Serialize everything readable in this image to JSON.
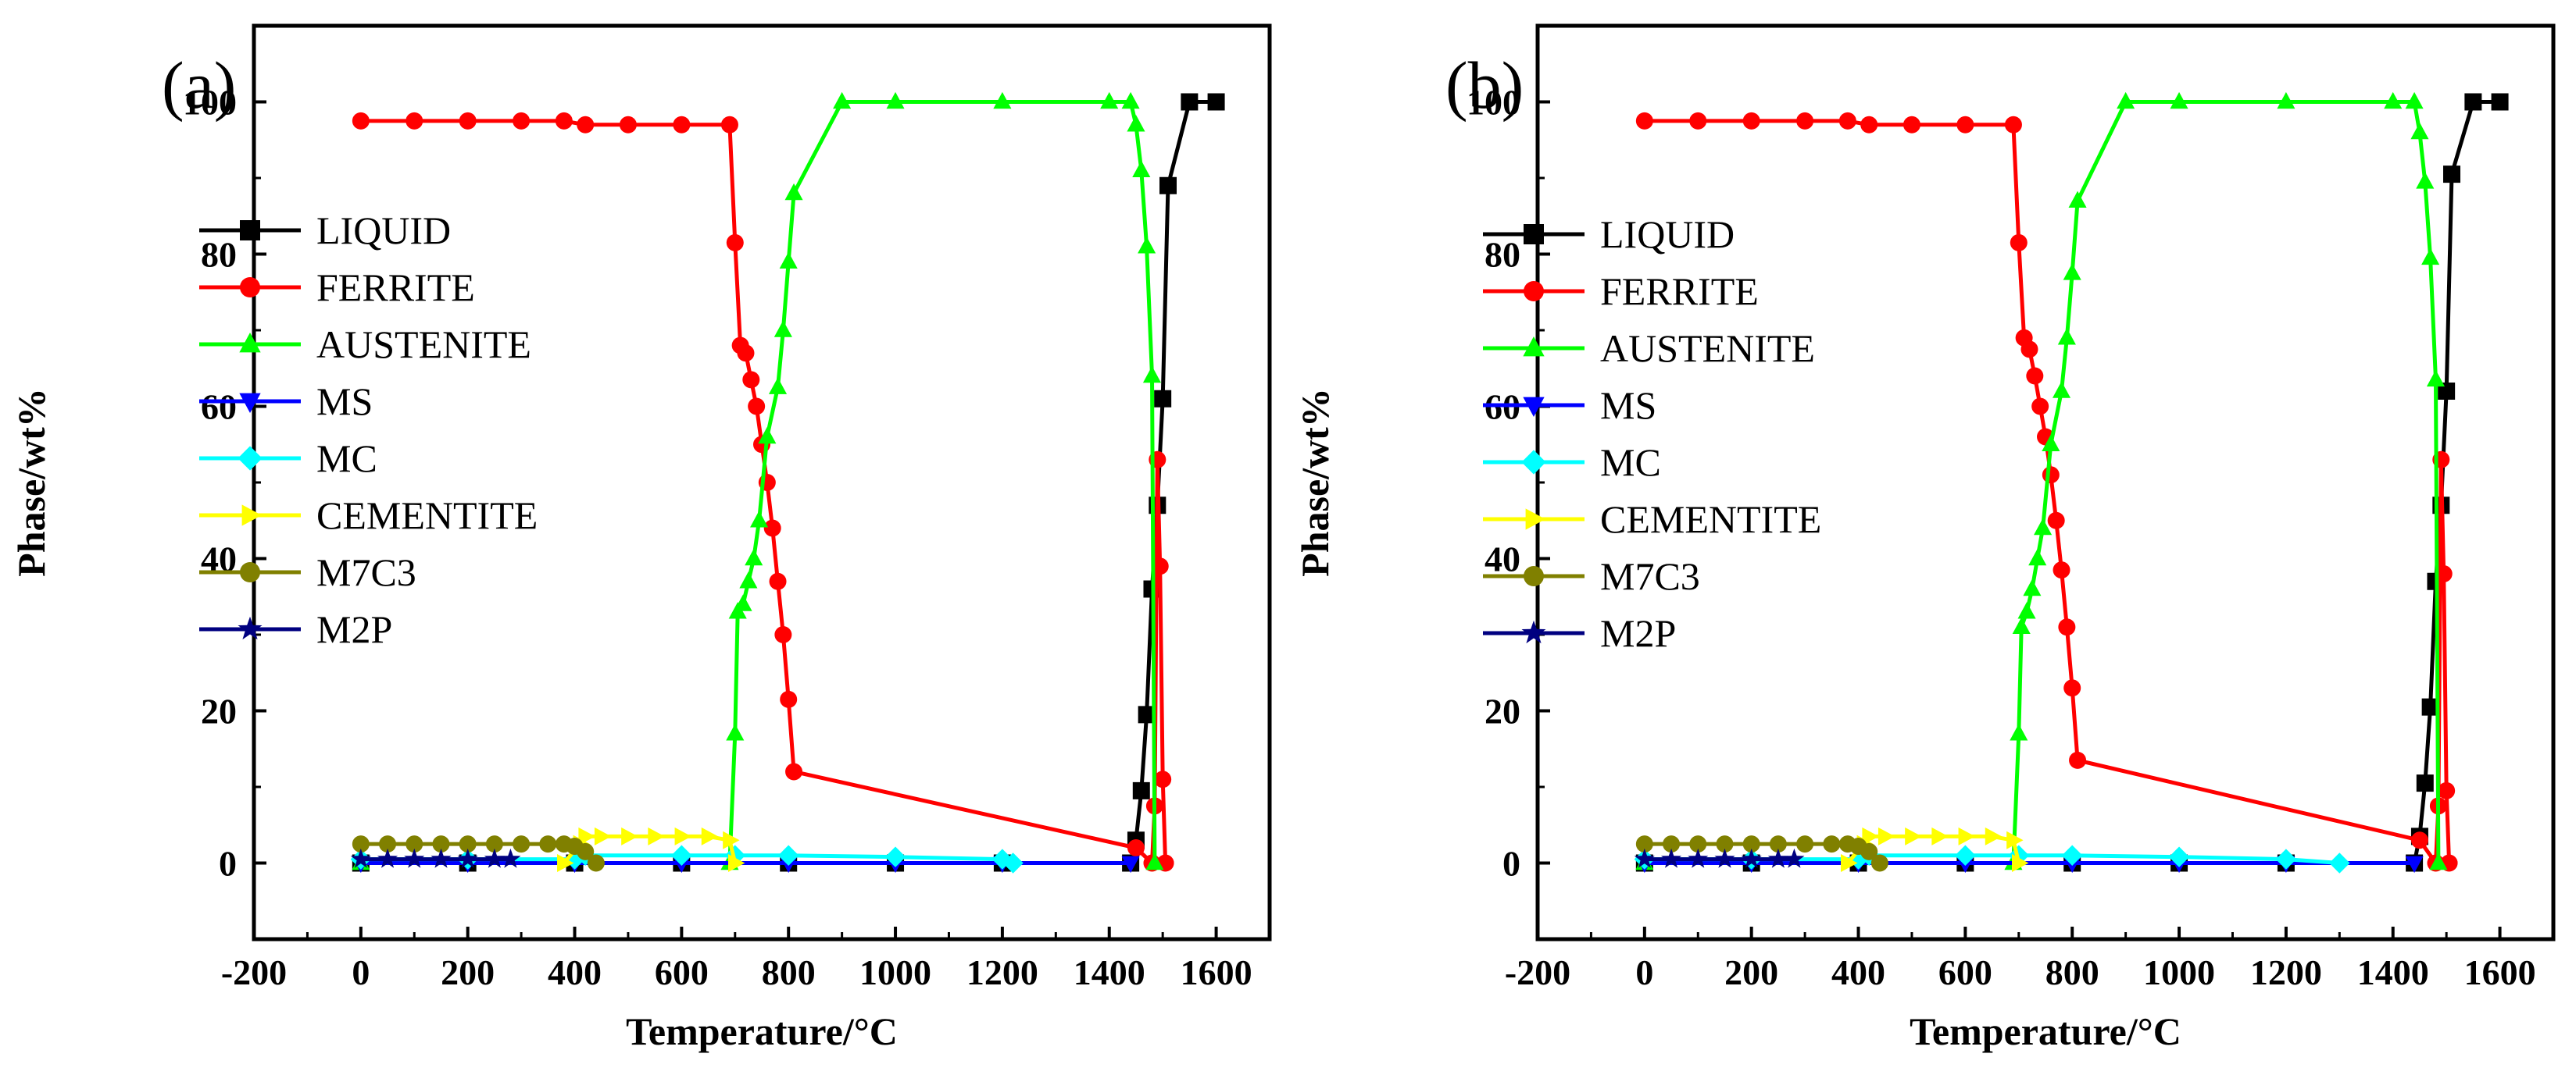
{
  "chart_data": [
    {
      "type": "line",
      "panel_label": "(a)",
      "xlabel": "Temperature/°C",
      "ylabel": "Phase/wt%",
      "xlim": [
        -200,
        1700
      ],
      "ylim": [
        -10,
        110
      ],
      "xticks": [
        -200,
        0,
        200,
        400,
        600,
        800,
        1000,
        1200,
        1400,
        1600
      ],
      "yticks": [
        0,
        20,
        40,
        60,
        80,
        100
      ],
      "legend_position": "left-middle",
      "series": [
        {
          "name": "LIQUID",
          "color": "#000000",
          "marker": "square",
          "x": [
            0,
            200,
            400,
            600,
            800,
            1000,
            1200,
            1440,
            1450,
            1460,
            1470,
            1480,
            1490,
            1500,
            1510,
            1550,
            1600
          ],
          "y": [
            0,
            0,
            0,
            0,
            0,
            0,
            0,
            0,
            3,
            9.5,
            19.5,
            36,
            47,
            61,
            89,
            100,
            100
          ]
        },
        {
          "name": "FERRITE",
          "color": "#ff0000",
          "marker": "circle",
          "x": [
            0,
            100,
            200,
            300,
            380,
            420,
            500,
            600,
            690,
            700,
            710,
            720,
            730,
            740,
            750,
            760,
            770,
            780,
            790,
            800,
            810,
            1450,
            1480,
            1485,
            1490,
            1495,
            1500,
            1505
          ],
          "y": [
            97.5,
            97.5,
            97.5,
            97.5,
            97.5,
            97,
            97,
            97,
            97,
            81.5,
            68,
            67,
            63.5,
            60,
            55,
            50,
            44,
            37,
            30,
            21.5,
            12,
            2,
            0,
            7.5,
            53,
            39,
            11,
            0
          ]
        },
        {
          "name": "AUSTENITE",
          "color": "#00ff00",
          "marker": "triangle-up",
          "x": [
            0,
            690,
            700,
            705,
            715,
            725,
            735,
            745,
            760,
            780,
            790,
            800,
            810,
            900,
            1000,
            1200,
            1400,
            1440,
            1450,
            1460,
            1470,
            1480,
            1485
          ],
          "y": [
            0,
            0,
            17,
            33,
            34,
            37,
            40,
            45,
            56,
            62.5,
            70,
            79,
            88,
            100,
            100,
            100,
            100,
            100,
            97,
            91,
            81,
            64,
            0
          ]
        },
        {
          "name": "MS",
          "color": "#0000ff",
          "marker": "triangle-down",
          "x": [
            0,
            200,
            400,
            600,
            800,
            1000,
            1200,
            1440
          ],
          "y": [
            0,
            0,
            0,
            0,
            0,
            0,
            0,
            0
          ]
        },
        {
          "name": "MC",
          "color": "#00ffff",
          "marker": "diamond",
          "x": [
            0,
            200,
            400,
            420,
            600,
            700,
            800,
            1000,
            1200,
            1220
          ],
          "y": [
            0.5,
            0.5,
            0.5,
            1,
            1,
            1,
            1,
            0.8,
            0.5,
            0
          ]
        },
        {
          "name": "CEMENTITE",
          "color": "#ffff00",
          "marker": "triangle-right",
          "x": [
            380,
            410,
            420,
            450,
            500,
            550,
            600,
            650,
            690,
            700
          ],
          "y": [
            0,
            2.5,
            3.5,
            3.5,
            3.5,
            3.5,
            3.5,
            3.5,
            3,
            0
          ]
        },
        {
          "name": "M7C3",
          "color": "#808000",
          "marker": "circle",
          "x": [
            0,
            50,
            100,
            150,
            200,
            250,
            300,
            350,
            380,
            400,
            420,
            440
          ],
          "y": [
            2.5,
            2.5,
            2.5,
            2.5,
            2.5,
            2.5,
            2.5,
            2.5,
            2.5,
            2.2,
            1.5,
            0
          ]
        },
        {
          "name": "M2P",
          "color": "#000080",
          "marker": "star",
          "x": [
            0,
            50,
            100,
            150,
            200,
            250,
            280
          ],
          "y": [
            0.5,
            0.5,
            0.5,
            0.5,
            0.5,
            0.5,
            0.5
          ]
        }
      ]
    },
    {
      "type": "line",
      "panel_label": "(b)",
      "xlabel": "Temperature/°C",
      "ylabel": "Phase/wt%",
      "xlim": [
        -200,
        1700
      ],
      "ylim": [
        -10,
        110
      ],
      "xticks": [
        -200,
        0,
        200,
        400,
        600,
        800,
        1000,
        1200,
        1400,
        1600
      ],
      "yticks": [
        0,
        20,
        40,
        60,
        80,
        100
      ],
      "legend_position": "left-middle",
      "series": [
        {
          "name": "LIQUID",
          "color": "#000000",
          "marker": "square",
          "x": [
            0,
            200,
            400,
            600,
            800,
            1000,
            1200,
            1440,
            1450,
            1460,
            1470,
            1480,
            1490,
            1500,
            1510,
            1550,
            1600
          ],
          "y": [
            0,
            0,
            0,
            0,
            0,
            0,
            0,
            0,
            3.5,
            10.5,
            20.5,
            37,
            47,
            62,
            90.5,
            100,
            100
          ]
        },
        {
          "name": "FERRITE",
          "color": "#ff0000",
          "marker": "circle",
          "x": [
            0,
            100,
            200,
            300,
            380,
            420,
            500,
            600,
            690,
            700,
            710,
            720,
            730,
            740,
            750,
            760,
            770,
            780,
            790,
            800,
            810,
            1450,
            1480,
            1485,
            1490,
            1495,
            1500,
            1505
          ],
          "y": [
            97.5,
            97.5,
            97.5,
            97.5,
            97.5,
            97,
            97,
            97,
            97,
            81.5,
            69,
            67.5,
            64,
            60,
            56,
            51,
            45,
            38.5,
            31,
            23,
            13.5,
            3,
            0,
            7.5,
            53,
            38,
            9.5,
            0
          ]
        },
        {
          "name": "AUSTENITE",
          "color": "#00ff00",
          "marker": "triangle-up",
          "x": [
            0,
            690,
            700,
            705,
            715,
            725,
            735,
            745,
            760,
            780,
            790,
            800,
            810,
            900,
            1000,
            1200,
            1400,
            1440,
            1450,
            1460,
            1470,
            1480,
            1485
          ],
          "y": [
            0,
            0,
            17,
            31,
            33,
            36,
            40,
            44,
            55,
            62,
            69,
            77.5,
            87,
            100,
            100,
            100,
            100,
            100,
            96,
            89.5,
            79.5,
            63.5,
            0
          ]
        },
        {
          "name": "MS",
          "color": "#0000ff",
          "marker": "triangle-down",
          "x": [
            0,
            200,
            400,
            600,
            800,
            1000,
            1200,
            1440
          ],
          "y": [
            0,
            0,
            0,
            0,
            0,
            0,
            0,
            0
          ]
        },
        {
          "name": "MC",
          "color": "#00ffff",
          "marker": "diamond",
          "x": [
            0,
            200,
            400,
            420,
            600,
            700,
            800,
            1000,
            1200,
            1300
          ],
          "y": [
            0.5,
            0.5,
            0.5,
            1,
            1,
            1,
            1,
            0.8,
            0.5,
            0
          ]
        },
        {
          "name": "CEMENTITE",
          "color": "#ffff00",
          "marker": "triangle-right",
          "x": [
            380,
            410,
            420,
            450,
            500,
            550,
            600,
            650,
            690,
            700
          ],
          "y": [
            0,
            2.5,
            3.5,
            3.5,
            3.5,
            3.5,
            3.5,
            3.5,
            3,
            0
          ]
        },
        {
          "name": "M7C3",
          "color": "#808000",
          "marker": "circle",
          "x": [
            0,
            50,
            100,
            150,
            200,
            250,
            300,
            350,
            380,
            400,
            420,
            440
          ],
          "y": [
            2.5,
            2.5,
            2.5,
            2.5,
            2.5,
            2.5,
            2.5,
            2.5,
            2.5,
            2.2,
            1.5,
            0
          ]
        },
        {
          "name": "M2P",
          "color": "#000080",
          "marker": "star",
          "x": [
            0,
            50,
            100,
            150,
            200,
            250,
            280
          ],
          "y": [
            0.5,
            0.5,
            0.5,
            0.5,
            0.5,
            0.5,
            0.5
          ]
        }
      ]
    }
  ]
}
